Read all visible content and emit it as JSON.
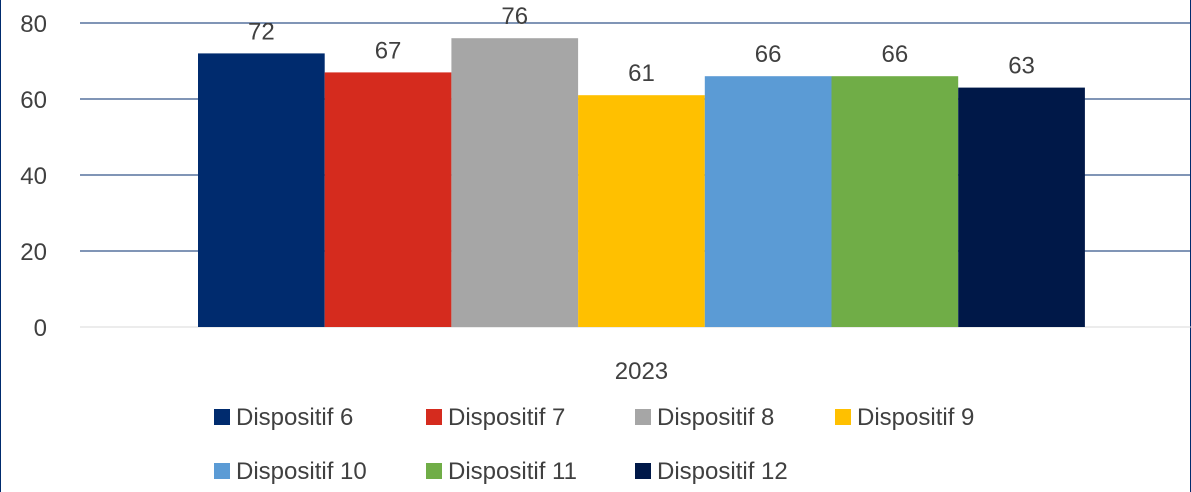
{
  "chart_data": {
    "type": "bar",
    "categories": [
      "2023"
    ],
    "series": [
      {
        "name": "Dispositif 6",
        "values": [
          72
        ],
        "color": "#002B6E"
      },
      {
        "name": "Dispositif 7",
        "values": [
          67
        ],
        "color": "#D52B1E"
      },
      {
        "name": "Dispositif 8",
        "values": [
          76
        ],
        "color": "#A6A6A6"
      },
      {
        "name": "Dispositif 9",
        "values": [
          61
        ],
        "color": "#FFC000"
      },
      {
        "name": "Dispositif 10",
        "values": [
          66
        ],
        "color": "#5B9BD5"
      },
      {
        "name": "Dispositif 11",
        "values": [
          66
        ],
        "color": "#70AD47"
      },
      {
        "name": "Dispositif 12",
        "values": [
          63
        ],
        "color": "#001848"
      }
    ],
    "yticks": [
      "0",
      "20",
      "40",
      "60",
      "80"
    ],
    "ylim": [
      0,
      80
    ],
    "grid": true,
    "data_labels": true,
    "legend_position": "bottom",
    "gridline_color": "#002B6E",
    "frame_color": "#002B6E"
  }
}
